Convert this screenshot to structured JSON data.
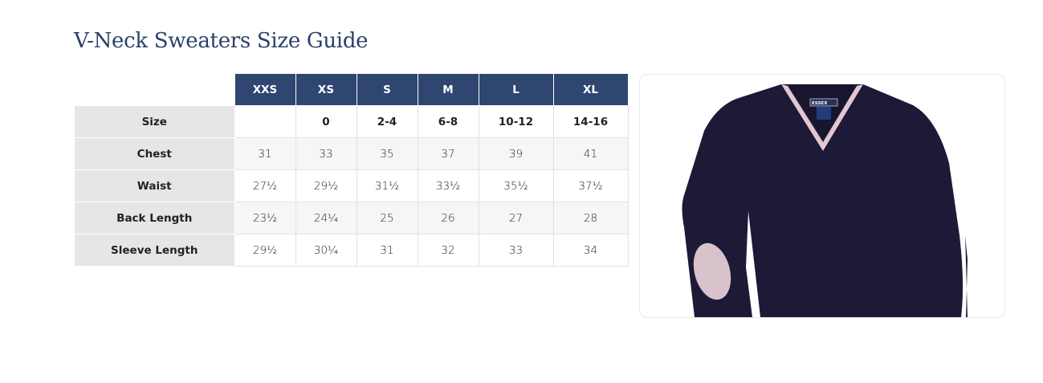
{
  "title": "V-Neck Sweaters Size Guide",
  "table": {
    "columns": [
      "XXS",
      "XS",
      "S",
      "M",
      "L",
      "XL"
    ],
    "rows": [
      {
        "label": "Size",
        "values": [
          "",
          "0",
          "2-4",
          "6-8",
          "10-12",
          "14-16"
        ]
      },
      {
        "label": "Chest",
        "values": [
          "31",
          "33",
          "35",
          "37",
          "39",
          "41"
        ]
      },
      {
        "label": "Waist",
        "values": [
          "27½",
          "29½",
          "31½",
          "33½",
          "35½",
          "37½"
        ]
      },
      {
        "label": "Back Length",
        "values": [
          "23½",
          "24¼",
          "25",
          "26",
          "27",
          "28"
        ]
      },
      {
        "label": "Sleeve Length",
        "values": [
          "29½",
          "30¼",
          "31",
          "32",
          "33",
          "34"
        ]
      }
    ]
  },
  "image": {
    "subject": "navy v-neck sweater with pink trim and elbow patch",
    "label_text": "ESSEX"
  },
  "colors": {
    "header": "#2e4670",
    "title": "#2c4068",
    "sweater": "#1c1a36",
    "trim": "#e3c6d2"
  }
}
